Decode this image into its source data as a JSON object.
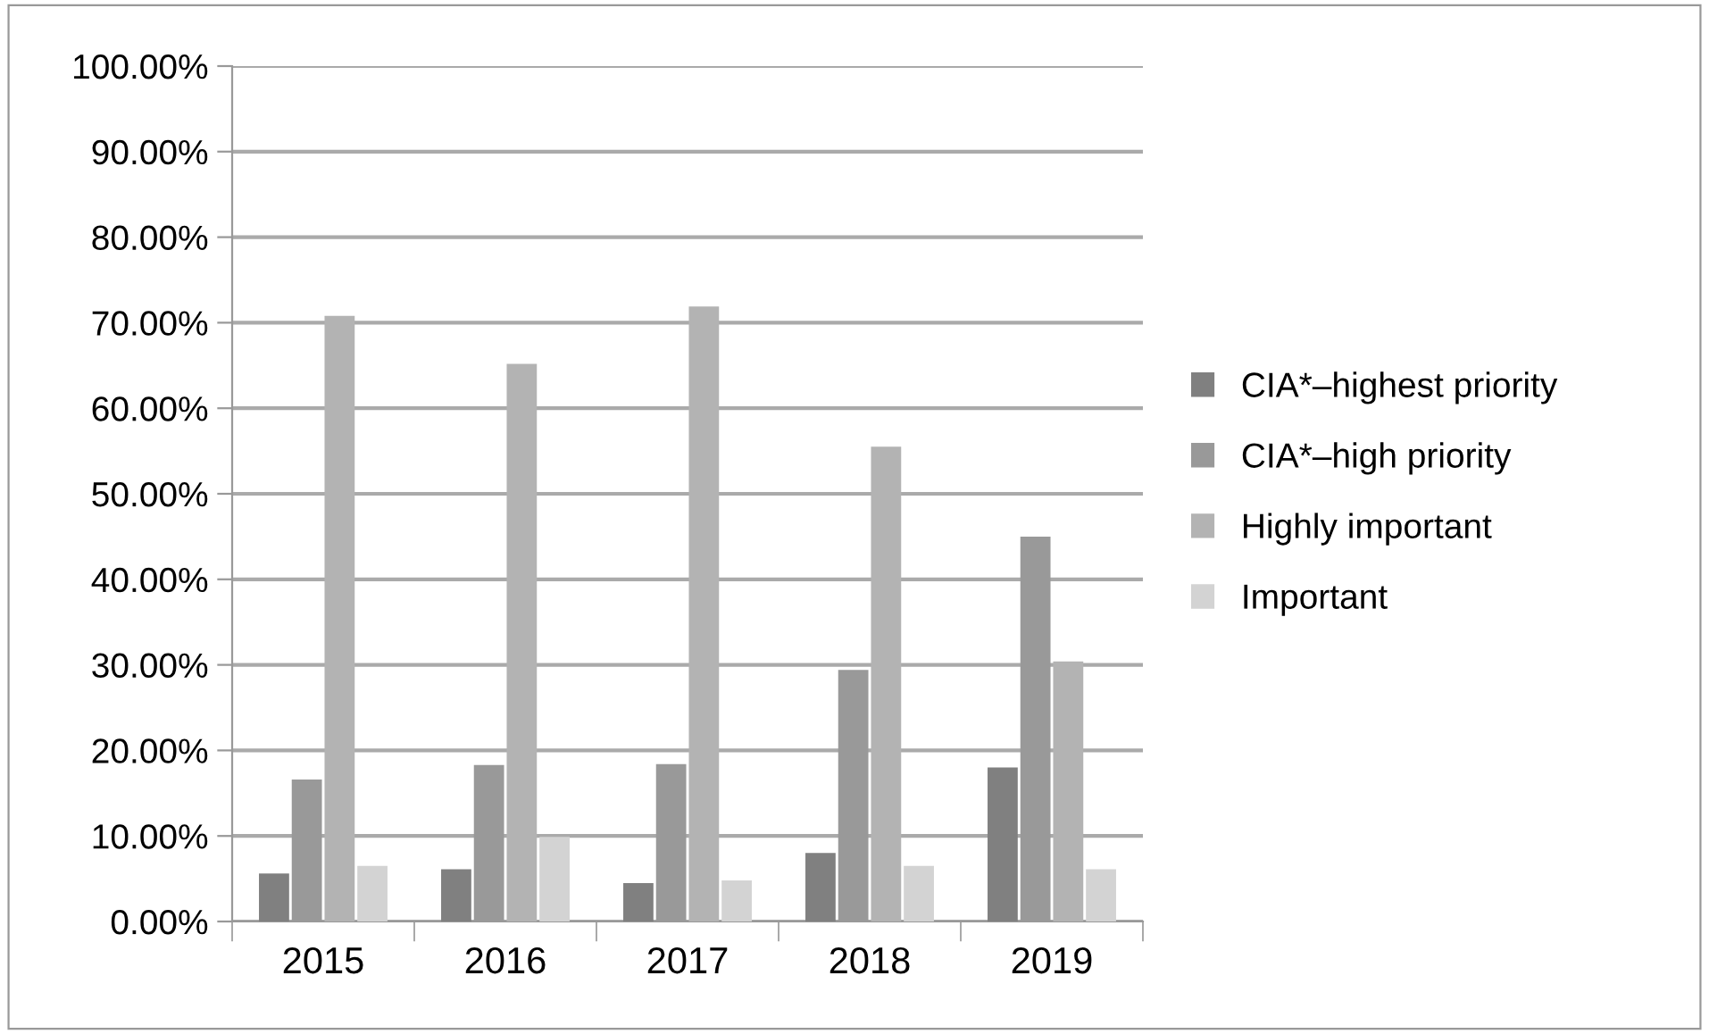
{
  "chart_data": {
    "type": "bar",
    "categories": [
      "2015",
      "2016",
      "2017",
      "2018",
      "2019"
    ],
    "series": [
      {
        "name": "CIA*–highest priority",
        "color": "#808080",
        "values": [
          5.6,
          6.1,
          4.5,
          8.0,
          18.0
        ]
      },
      {
        "name": "CIA*–high priority",
        "color": "#999999",
        "values": [
          16.6,
          18.3,
          18.4,
          29.4,
          45.0
        ]
      },
      {
        "name": "Highly important",
        "color": "#b3b3b3",
        "values": [
          70.8,
          65.2,
          71.9,
          55.5,
          30.4
        ]
      },
      {
        "name": "Important",
        "color": "#d3d3d3",
        "values": [
          6.5,
          9.9,
          4.8,
          6.5,
          6.1
        ]
      }
    ],
    "ylim": [
      0,
      100
    ],
    "yticks": [
      {
        "value": 0,
        "label": "0.00%"
      },
      {
        "value": 10,
        "label": "10.00%"
      },
      {
        "value": 20,
        "label": "20.00%"
      },
      {
        "value": 30,
        "label": "30.00%"
      },
      {
        "value": 40,
        "label": "40.00%"
      },
      {
        "value": 50,
        "label": "50.00%"
      },
      {
        "value": 60,
        "label": "60.00%"
      },
      {
        "value": 70,
        "label": "70.00%"
      },
      {
        "value": 80,
        "label": "80.00%"
      },
      {
        "value": 90,
        "label": "90.00%"
      },
      {
        "value": 100,
        "label": "100.00%"
      }
    ],
    "grid": "y",
    "legend": "right"
  }
}
